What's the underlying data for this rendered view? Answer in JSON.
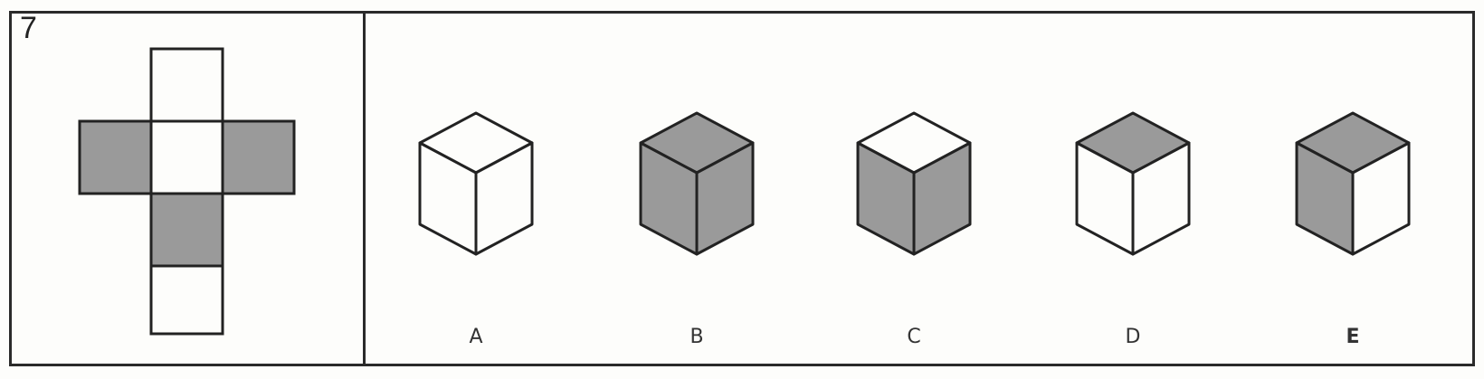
{
  "question": {
    "number": "7"
  },
  "net": {
    "layout": "cross",
    "cells": [
      {
        "name": "net-top-face",
        "shade": "white"
      },
      {
        "name": "net-left-face",
        "shade": "gray"
      },
      {
        "name": "net-center-face",
        "shade": "white"
      },
      {
        "name": "net-right-face",
        "shade": "gray"
      },
      {
        "name": "net-lower-face",
        "shade": "gray"
      },
      {
        "name": "net-bottom-face",
        "shade": "white"
      }
    ]
  },
  "options": [
    {
      "label": "A",
      "top": "white",
      "left": "white",
      "right": "white"
    },
    {
      "label": "B",
      "top": "gray",
      "left": "gray",
      "right": "gray"
    },
    {
      "label": "C",
      "top": "white",
      "left": "gray",
      "right": "gray"
    },
    {
      "label": "D",
      "top": "gray",
      "left": "white",
      "right": "white"
    },
    {
      "label": "E",
      "top": "gray",
      "left": "gray",
      "right": "white"
    }
  ],
  "colors": {
    "gray": "#9a9a9a",
    "white": "#fdfdfb",
    "ink": "#222222"
  }
}
